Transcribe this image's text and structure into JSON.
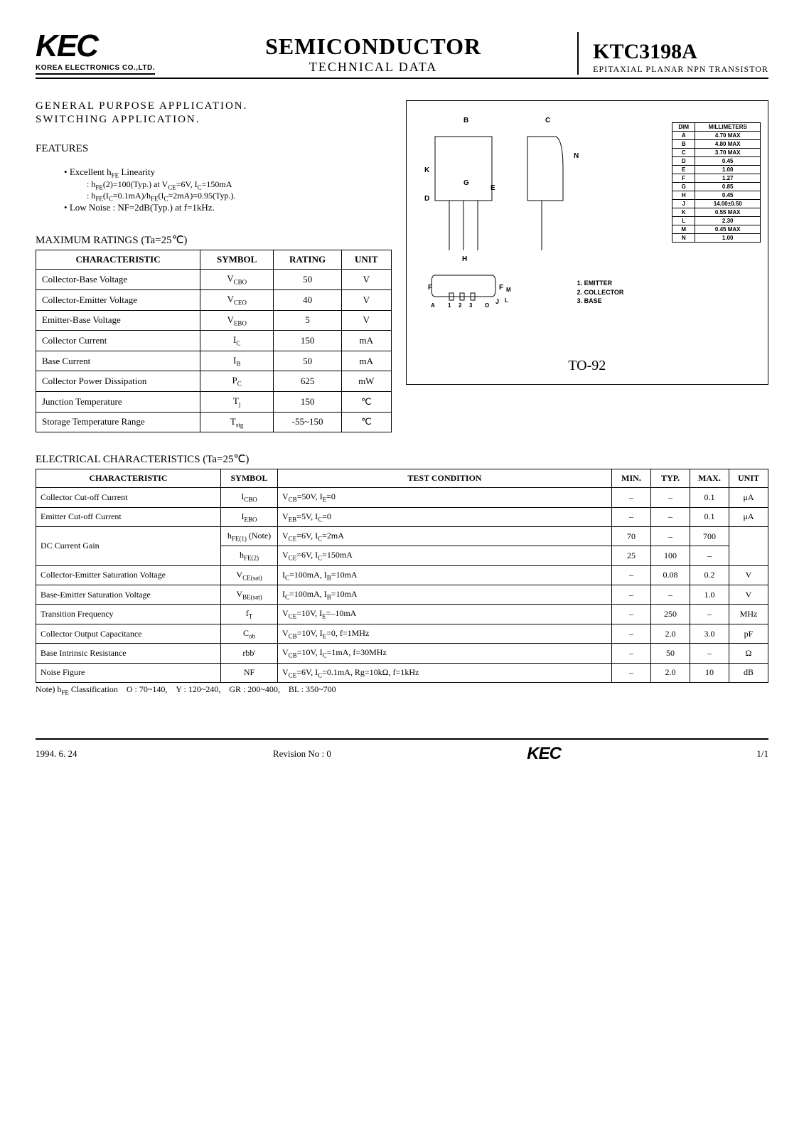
{
  "header": {
    "logo_text": "KEC",
    "logo_sub": "KOREA ELECTRONICS CO.,LTD.",
    "mid_title": "SEMICONDUCTOR",
    "mid_sub": "TECHNICAL DATA",
    "part_no": "KTC3198A",
    "part_sub": "EPITAXIAL PLANAR NPN TRANSISTOR"
  },
  "application": {
    "line1": "GENERAL PURPOSE APPLICATION.",
    "line2": "SWITCHING APPLICATION."
  },
  "features": {
    "title": "FEATURES",
    "items": [
      "Excellent h_FE Linearity",
      ": h_FE(2)=100(Typ.) at V_CE=6V, I_C=150mA",
      ": h_FE(I_C=0.1mA)/h_FE(I_C=2mA)=0.95(Typ.).",
      "Low Noise : NF=2dB(Typ.) at f=1kHz."
    ]
  },
  "max_ratings": {
    "title": "MAXIMUM RATINGS (Ta=25℃)",
    "columns": [
      "CHARACTERISTIC",
      "SYMBOL",
      "RATING",
      "UNIT"
    ],
    "rows": [
      [
        "Collector-Base Voltage",
        "V_CBO",
        "50",
        "V"
      ],
      [
        "Collector-Emitter Voltage",
        "V_CEO",
        "40",
        "V"
      ],
      [
        "Emitter-Base Voltage",
        "V_EBO",
        "5",
        "V"
      ],
      [
        "Collector Current",
        "I_C",
        "150",
        "mA"
      ],
      [
        "Base Current",
        "I_B",
        "50",
        "mA"
      ],
      [
        "Collector Power Dissipation",
        "P_C",
        "625",
        "mW"
      ],
      [
        "Junction Temperature",
        "T_j",
        "150",
        "℃"
      ],
      [
        "Storage Temperature Range",
        "T_stg",
        "-55~150",
        "℃"
      ]
    ]
  },
  "package": {
    "dim_header": [
      "DIM",
      "MILLIMETERS"
    ],
    "dims": [
      [
        "A",
        "4.70 MAX"
      ],
      [
        "B",
        "4.80 MAX"
      ],
      [
        "C",
        "3.70 MAX"
      ],
      [
        "D",
        "0.45"
      ],
      [
        "E",
        "1.00"
      ],
      [
        "F",
        "1.27"
      ],
      [
        "G",
        "0.85"
      ],
      [
        "H",
        "0.45"
      ],
      [
        "J",
        "14.00±0.50"
      ],
      [
        "K",
        "0.55 MAX"
      ],
      [
        "L",
        "2.30"
      ],
      [
        "M",
        "0.45 MAX"
      ],
      [
        "N",
        "1.00"
      ]
    ],
    "pins": [
      "1. EMITTER",
      "2. COLLECTOR",
      "3. BASE"
    ],
    "name": "TO-92"
  },
  "elec": {
    "title": "ELECTRICAL CHARACTERISTICS (Ta=25℃)",
    "columns": [
      "CHARACTERISTIC",
      "SYMBOL",
      "TEST CONDITION",
      "MIN.",
      "TYP.",
      "MAX.",
      "UNIT"
    ],
    "rows": [
      {
        "c": "Collector Cut-off Current",
        "s": "I_CBO",
        "t": "V_CB=50V,  I_E=0",
        "min": "-",
        "typ": "-",
        "max": "0.1",
        "u": "μA"
      },
      {
        "c": "Emitter Cut-off Current",
        "s": "I_EBO",
        "t": "V_EB=5V,  I_C=0",
        "min": "-",
        "typ": "-",
        "max": "0.1",
        "u": "μA"
      },
      {
        "c": "DC Current Gain",
        "s": "h_FE(1) (Note)",
        "t": "V_CE=6V,  I_C=2mA",
        "min": "70",
        "typ": "-",
        "max": "700",
        "u": "",
        "rowspan": 2
      },
      {
        "c": "",
        "s": "h_FE(2)",
        "t": "V_CE=6V,  I_C=150mA",
        "min": "25",
        "typ": "100",
        "max": "-",
        "u": ""
      },
      {
        "c": "Collector-Emitter Saturation Voltage",
        "s": "V_CE(sat)",
        "t": "I_C=100mA,  I_B=10mA",
        "min": "-",
        "typ": "0.08",
        "max": "0.2",
        "u": "V"
      },
      {
        "c": "Base-Emitter Saturation Voltage",
        "s": "V_BE(sat)",
        "t": "I_C=100mA,  I_B=10mA",
        "min": "-",
        "typ": "-",
        "max": "1.0",
        "u": "V"
      },
      {
        "c": "Transition Frequency",
        "s": "f_T",
        "t": "V_CE=10V,  I_E=-10mA",
        "min": "-",
        "typ": "250",
        "max": "-",
        "u": "MHz"
      },
      {
        "c": "Collector Output Capacitance",
        "s": "C_ob",
        "t": "V_CB=10V,  I_E=0,  f=1MHz",
        "min": "-",
        "typ": "2.0",
        "max": "3.0",
        "u": "pF"
      },
      {
        "c": "Base Intrinsic Resistance",
        "s": "rbb'",
        "t": "V_CB=10V,  I_C=1mA,  f=30MHz",
        "min": "-",
        "typ": "50",
        "max": "-",
        "u": "Ω"
      },
      {
        "c": "Noise Figure",
        "s": "NF",
        "t": "V_CE=6V,  I_C=0.1mA,  Rg=10kΩ,  f=1kHz",
        "min": "-",
        "typ": "2.0",
        "max": "10",
        "u": "dB"
      }
    ],
    "note": "Note) h_FE Classification    O : 70~140,    Y : 120~240,    GR : 200~400,    BL : 350~700"
  },
  "footer": {
    "date": "1994. 6. 24",
    "rev": "Revision No : 0",
    "logo": "KEC",
    "page": "1/1"
  }
}
